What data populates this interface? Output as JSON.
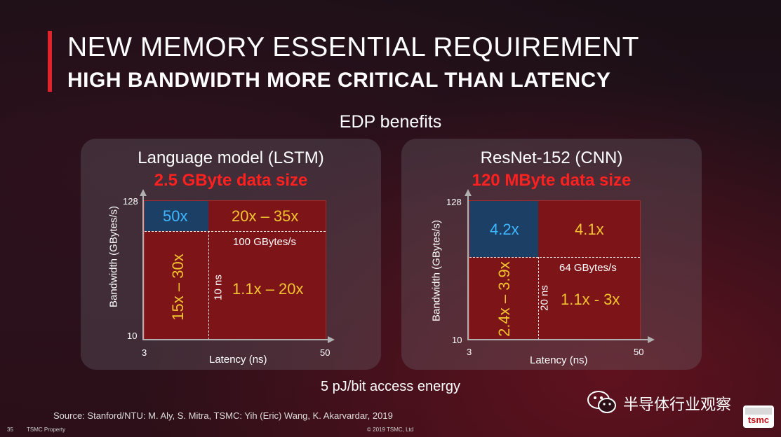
{
  "header": {
    "title": "NEW MEMORY ESSENTIAL REQUIREMENT",
    "subtitle": "HIGH BANDWIDTH MORE CRITICAL THAN LATENCY",
    "accent_color": "#e1242b"
  },
  "section_title": "EDP benefits",
  "left_panel": {
    "title": "Language model (LSTM)",
    "data_size": "2.5 GByte data size",
    "y_axis_label": "Bandwidth (GBytes/s)",
    "x_axis_label": "Latency (ns)",
    "y_ticks": {
      "max": "128",
      "min": "10"
    },
    "x_ticks": {
      "min": "3",
      "max": "50"
    },
    "values": {
      "top_left": "50x",
      "top_right": "20x – 35x",
      "bottom_left": "15x – 30x",
      "bottom_right": "1.1x – 20x"
    },
    "bandwidth_threshold": "100 GBytes/s",
    "latency_threshold": "10 ns"
  },
  "right_panel": {
    "title": "ResNet-152 (CNN)",
    "data_size": "120 MByte data size",
    "y_axis_label": "Bandwidth (GBytes/s)",
    "x_axis_label": "Latency (ns)",
    "y_ticks": {
      "max": "128",
      "min": "10"
    },
    "x_ticks": {
      "min": "3",
      "max": "50"
    },
    "values": {
      "top_left": "4.2x",
      "top_right": "4.1x",
      "bottom_left": "2.4x – 3.9x",
      "bottom_right": "1.1x  - 3x"
    },
    "bandwidth_threshold": "64 GBytes/s",
    "latency_threshold": "20 ns"
  },
  "energy_note": "5 pJ/bit access energy",
  "source": "Source: Stanford/NTU: M. Aly, S. Mitra, TSMC: Yih (Eric) Wang, K. Akarvardar, 2019",
  "footer": {
    "page_number": "35",
    "property": "TSMC Property",
    "copyright": "© 2019 TSMC, Ltd"
  },
  "watermark": {
    "icon": "wechat-icon",
    "text": "半导体行业观察"
  },
  "logo": {
    "icon": "tsmc-logo-icon",
    "text": "tsmc"
  },
  "colors": {
    "plot_fill": "#7c1418",
    "highlight_quadrant": "#1c3f66",
    "blue_value": "#3fb7ff",
    "yellow_value": "#f4c430",
    "data_size_red": "#ff2020"
  }
}
